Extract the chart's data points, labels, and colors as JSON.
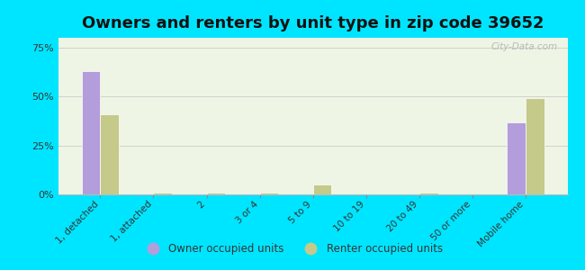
{
  "title": "Owners and renters by unit type in zip code 39652",
  "categories": [
    "1, detached",
    "1, attached",
    "2",
    "3 or 4",
    "5 to 9",
    "10 to 19",
    "20 to 49",
    "50 or more",
    "Mobile home"
  ],
  "owner_values": [
    63,
    0.5,
    0,
    0.5,
    0,
    0,
    0,
    0,
    37
  ],
  "renter_values": [
    41,
    1,
    1,
    1,
    5,
    0,
    1,
    0,
    49
  ],
  "owner_color": "#b39ddb",
  "renter_color": "#c5c98a",
  "background_outer": "#00e5ff",
  "background_plot": "#eef5e4",
  "yticks": [
    0,
    25,
    50,
    75
  ],
  "ylim": [
    0,
    80
  ],
  "watermark": "City-Data.com",
  "legend_owner": "Owner occupied units",
  "legend_renter": "Renter occupied units",
  "title_fontsize": 13,
  "bar_width": 0.35,
  "bar_edge_color": "#ffffff"
}
